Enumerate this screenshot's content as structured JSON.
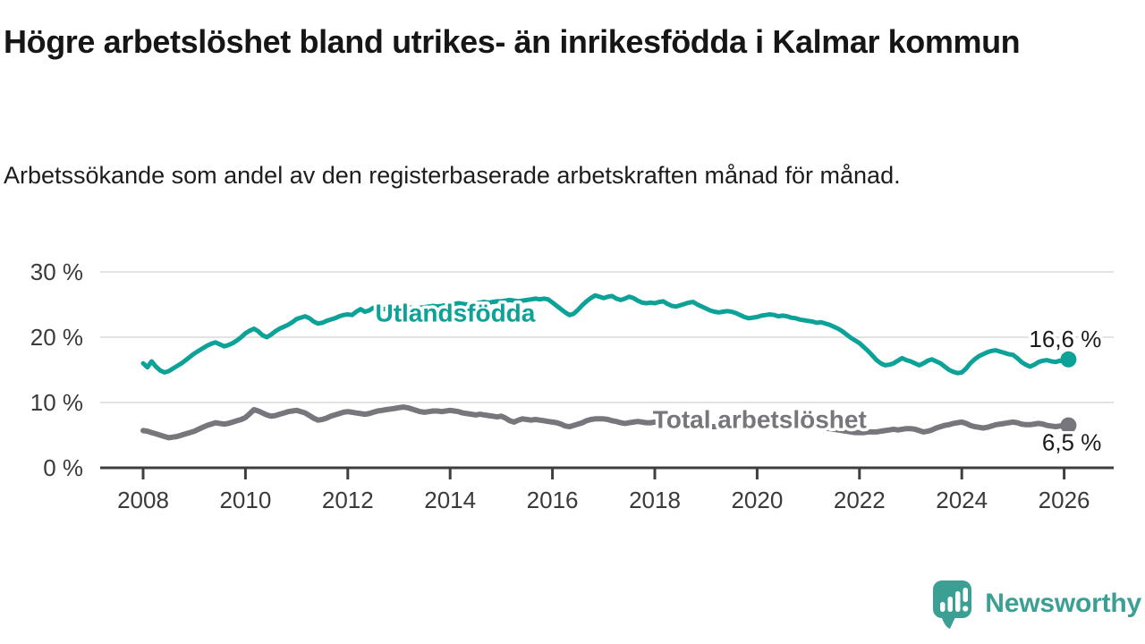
{
  "page": {
    "title": "Högre arbetslöshet bland utrikes- än inrikesfödda i Kalmar kommun",
    "subtitle": "Arbetssökande som andel av den registerbaserade arbetskraften månad för månad."
  },
  "footer": {
    "brand": "Newsworthy"
  },
  "colors": {
    "teal": "#0ca297",
    "gray": "#76767c",
    "grid": "#e3e3e3",
    "axis": "#3e3e3e",
    "axis_text": "#3a3a3a",
    "value_text": "#1a1a1a",
    "logo": "#3b9f93",
    "background": "#ffffff"
  },
  "chart_data": {
    "type": "line",
    "title": "Högre arbetslöshet bland utrikes- än inrikesfödda i Kalmar kommun",
    "subtitle": "Arbetssökande som andel av den registerbaserade arbetskraften månad för månad.",
    "x_unit": "month",
    "x_start": "2008-01",
    "x_end": "2026-02",
    "xlim": [
      2007.9,
      2027.0
    ],
    "ylim": [
      0,
      31
    ],
    "grid": "horizontal",
    "legend_position": "inline-labels",
    "x_ticks": [
      "2008",
      "2010",
      "2012",
      "2014",
      "2016",
      "2018",
      "2020",
      "2022",
      "2024",
      "2026"
    ],
    "y_ticks": [
      {
        "value": 0,
        "label": "0 %"
      },
      {
        "value": 10,
        "label": "10 %"
      },
      {
        "value": 20,
        "label": "20 %"
      },
      {
        "value": 30,
        "label": "30 %"
      }
    ],
    "series": [
      {
        "name": "Utlandsfödda",
        "color": "#0ca297",
        "line_width": 5,
        "end_value": 16.6,
        "end_label": "16,6 %",
        "end_label_side": "above",
        "label_anchor": {
          "year": 2014.1,
          "pct": 23.8
        },
        "values": [
          16.0,
          15.4,
          16.3,
          15.5,
          14.9,
          14.6,
          14.8,
          15.2,
          15.6,
          16.0,
          16.5,
          17.0,
          17.5,
          17.9,
          18.3,
          18.7,
          19.0,
          19.2,
          18.9,
          18.6,
          18.8,
          19.1,
          19.5,
          20.0,
          20.6,
          21.0,
          21.3,
          20.9,
          20.3,
          20.0,
          20.4,
          20.9,
          21.3,
          21.6,
          21.9,
          22.3,
          22.8,
          23.0,
          23.2,
          22.9,
          22.4,
          22.1,
          22.2,
          22.5,
          22.7,
          22.9,
          23.2,
          23.4,
          23.5,
          23.4,
          23.9,
          24.3,
          23.9,
          24.1,
          24.5,
          24.3,
          24.2,
          24.4,
          24.3,
          24.5,
          24.4,
          24.5,
          24.6,
          24.5,
          24.4,
          24.5,
          24.6,
          24.7,
          24.8,
          24.7,
          24.8,
          24.9,
          25.0,
          25.1,
          25.2,
          25.1,
          25.0,
          25.1,
          25.2,
          25.3,
          25.4,
          25.3,
          25.4,
          25.5,
          25.5,
          25.6,
          25.7,
          25.6,
          25.5,
          25.6,
          25.7,
          25.8,
          25.9,
          25.8,
          25.9,
          25.8,
          25.3,
          24.8,
          24.3,
          23.8,
          23.4,
          23.6,
          24.2,
          24.9,
          25.5,
          26.0,
          26.4,
          26.2,
          26.0,
          26.2,
          26.3,
          25.9,
          25.7,
          25.9,
          26.2,
          26.0,
          25.6,
          25.3,
          25.2,
          25.3,
          25.2,
          25.4,
          25.5,
          25.1,
          24.8,
          24.7,
          24.9,
          25.1,
          25.3,
          25.4,
          25.0,
          24.7,
          24.4,
          24.1,
          23.9,
          23.8,
          23.9,
          24.0,
          23.9,
          23.7,
          23.4,
          23.1,
          22.9,
          23.0,
          23.1,
          23.3,
          23.4,
          23.5,
          23.4,
          23.2,
          23.3,
          23.2,
          23.0,
          22.9,
          22.7,
          22.6,
          22.5,
          22.4,
          22.2,
          22.3,
          22.1,
          21.9,
          21.6,
          21.3,
          20.9,
          20.4,
          19.9,
          19.5,
          19.1,
          18.5,
          17.9,
          17.2,
          16.5,
          16.0,
          15.7,
          15.8,
          16.0,
          16.4,
          16.8,
          16.5,
          16.3,
          16.0,
          15.7,
          16.0,
          16.4,
          16.6,
          16.3,
          16.0,
          15.5,
          15.0,
          14.7,
          14.5,
          14.6,
          15.2,
          16.0,
          16.6,
          17.1,
          17.4,
          17.7,
          17.9,
          18.0,
          17.8,
          17.6,
          17.4,
          17.3,
          16.8,
          16.2,
          15.8,
          15.5,
          15.8,
          16.2,
          16.4,
          16.5,
          16.3,
          16.2,
          16.4,
          16.3,
          16.6
        ]
      },
      {
        "name": "Total arbetslöshet",
        "color": "#76767c",
        "line_width": 6,
        "end_value": 6.5,
        "end_label": "6,5 %",
        "end_label_side": "below",
        "label_anchor": {
          "year": 2020.05,
          "pct": 7.5
        },
        "values": [
          5.7,
          5.6,
          5.4,
          5.2,
          5.0,
          4.8,
          4.6,
          4.7,
          4.8,
          5.0,
          5.2,
          5.4,
          5.6,
          5.9,
          6.2,
          6.5,
          6.7,
          6.9,
          6.8,
          6.7,
          6.8,
          7.0,
          7.2,
          7.4,
          7.7,
          8.3,
          8.9,
          8.7,
          8.4,
          8.1,
          7.9,
          8.0,
          8.2,
          8.4,
          8.6,
          8.7,
          8.8,
          8.6,
          8.4,
          8.0,
          7.6,
          7.3,
          7.4,
          7.6,
          7.9,
          8.1,
          8.3,
          8.5,
          8.6,
          8.5,
          8.4,
          8.3,
          8.2,
          8.3,
          8.5,
          8.7,
          8.8,
          8.9,
          9.0,
          9.1,
          9.2,
          9.3,
          9.2,
          9.0,
          8.8,
          8.6,
          8.5,
          8.6,
          8.7,
          8.7,
          8.6,
          8.7,
          8.8,
          8.7,
          8.6,
          8.4,
          8.3,
          8.2,
          8.1,
          8.2,
          8.1,
          8.0,
          7.9,
          7.8,
          7.9,
          7.6,
          7.2,
          7.0,
          7.3,
          7.5,
          7.4,
          7.3,
          7.4,
          7.3,
          7.2,
          7.1,
          7.0,
          6.9,
          6.7,
          6.4,
          6.3,
          6.5,
          6.7,
          6.9,
          7.2,
          7.4,
          7.5,
          7.5,
          7.5,
          7.4,
          7.2,
          7.1,
          6.9,
          6.8,
          6.9,
          7.0,
          7.1,
          7.0,
          6.9,
          6.9,
          7.0,
          6.9,
          6.8,
          6.7,
          6.6,
          6.5,
          6.5,
          6.6,
          6.6,
          6.5,
          6.4,
          6.4,
          6.4,
          6.3,
          6.3,
          6.4,
          6.4,
          6.3,
          6.4,
          6.4,
          6.3,
          6.3,
          6.2,
          6.3,
          6.4,
          6.6,
          7.0,
          7.3,
          7.4,
          7.3,
          7.2,
          7.1,
          7.0,
          6.9,
          6.8,
          6.7,
          6.6,
          6.5,
          6.4,
          6.3,
          6.1,
          6.0,
          5.9,
          5.8,
          5.7,
          5.6,
          5.5,
          5.4,
          5.4,
          5.4,
          5.5,
          5.5,
          5.5,
          5.6,
          5.7,
          5.8,
          5.9,
          5.8,
          5.9,
          6.0,
          6.0,
          5.9,
          5.7,
          5.5,
          5.6,
          5.8,
          6.1,
          6.3,
          6.5,
          6.6,
          6.8,
          6.9,
          7.0,
          6.8,
          6.5,
          6.3,
          6.2,
          6.1,
          6.2,
          6.4,
          6.6,
          6.7,
          6.8,
          6.9,
          7.0,
          6.9,
          6.7,
          6.6,
          6.6,
          6.7,
          6.8,
          6.7,
          6.5,
          6.4,
          6.3,
          6.4,
          6.4,
          6.5
        ]
      }
    ]
  }
}
